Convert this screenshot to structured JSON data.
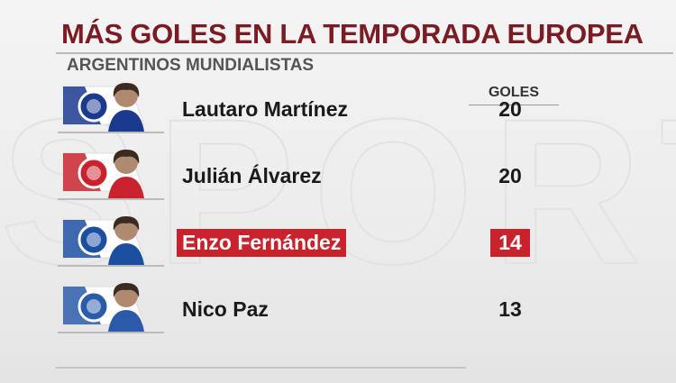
{
  "header": {
    "title": "MÁS GOLES EN LA TEMPORADA EUROPEA",
    "subtitle": "ARGENTINOS MUNDIALISTAS"
  },
  "table": {
    "column_header": "GOLES",
    "rows": [
      {
        "name": "Lautaro Martínez",
        "goals": "20",
        "club_color": "#1a3a8f",
        "highlight": false
      },
      {
        "name": "Julián Álvarez",
        "goals": "20",
        "club_color": "#c8232c",
        "highlight": false
      },
      {
        "name": "Enzo Fernández",
        "goals": "14",
        "club_color": "#1d4fa0",
        "highlight": true
      },
      {
        "name": "Nico Paz",
        "goals": "13",
        "club_color": "#2a5aa8",
        "highlight": false
      }
    ]
  }
}
